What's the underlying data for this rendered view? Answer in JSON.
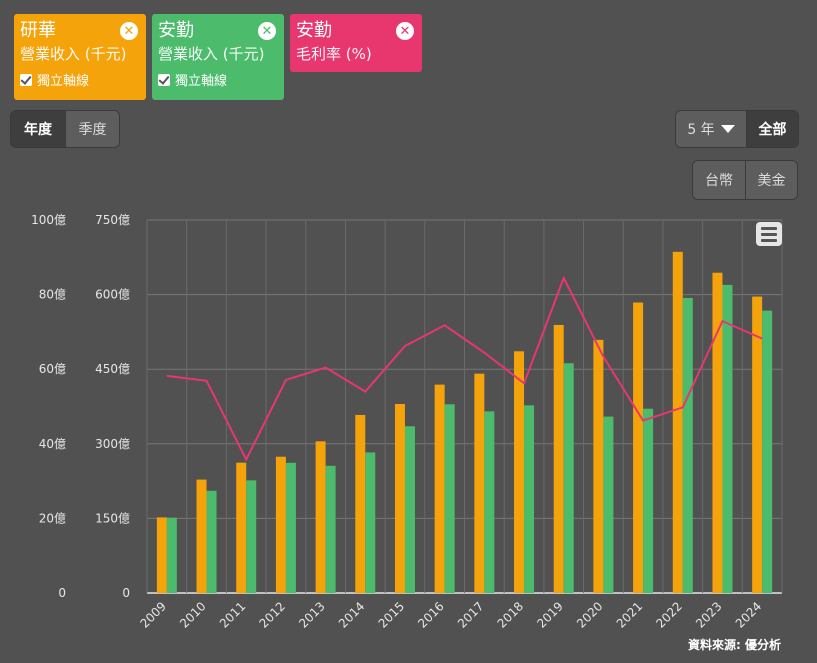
{
  "legend": [
    {
      "name": "研華",
      "metric": "營業收入 (千元)",
      "axis_option": "獨立軸線",
      "color": "#f5a30b"
    },
    {
      "name": "安勤",
      "metric": "營業收入 (千元)",
      "axis_option": "獨立軸線",
      "color": "#4cbc6c"
    },
    {
      "name": "安勤",
      "metric": "毛利率 (%)",
      "color": "#e8366f"
    }
  ],
  "period_tabs": [
    "年度",
    "季度"
  ],
  "range": {
    "years_label": "5 年",
    "all_label": "全部"
  },
  "currency_tabs": [
    "台幣",
    "美金"
  ],
  "source_label": "資料來源: 優分析",
  "chart_data": {
    "type": "bar",
    "categories": [
      "2009",
      "2010",
      "2011",
      "2012",
      "2013",
      "2014",
      "2015",
      "2016",
      "2017",
      "2018",
      "2019",
      "2020",
      "2021",
      "2022",
      "2023",
      "2024"
    ],
    "left_axis_1": {
      "ticks": [
        "0",
        "20億",
        "40億",
        "60億",
        "80億",
        "100億"
      ],
      "range": [
        0,
        100
      ]
    },
    "left_axis_2": {
      "ticks": [
        "0",
        "150億",
        "300億",
        "450億",
        "600億",
        "750億"
      ],
      "range": [
        0,
        750
      ]
    },
    "series": [
      {
        "name": "研華 營業收入 (千元)",
        "type": "bar",
        "axis": "left_axis_2",
        "color": "#f5a30b",
        "values": [
          152,
          228,
          262,
          274,
          305,
          358,
          380,
          419,
          441,
          486,
          539,
          509,
          584,
          686,
          644,
          596
        ]
      },
      {
        "name": "安勤 營業收入 (千元)",
        "type": "bar",
        "axis": "left_axis_1",
        "color": "#4cbc6c",
        "values": [
          20.2,
          27.4,
          30.2,
          34.9,
          34.1,
          37.7,
          44.7,
          50.6,
          48.7,
          50.3,
          61.6,
          47.3,
          49.4,
          79.1,
          82.6,
          75.7
        ]
      },
      {
        "name": "安勤 毛利率 (%)",
        "type": "line",
        "axis": "hidden",
        "color": "#e8366f",
        "values": [
          31.2,
          30.6,
          21.1,
          30.7,
          32.2,
          29.3,
          34.8,
          37.3,
          34.0,
          30.3,
          43.0,
          33.5,
          25.8,
          27.4,
          37.8,
          35.7
        ],
        "range": [
          5,
          50
        ]
      }
    ],
    "grid": true
  }
}
